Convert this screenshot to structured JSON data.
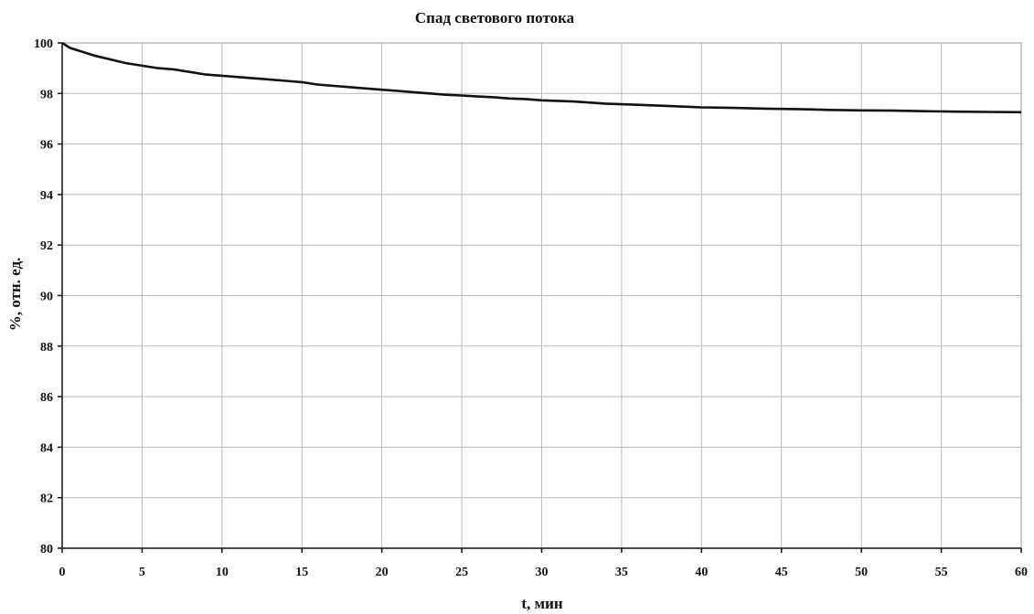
{
  "chart_data": {
    "type": "line",
    "title": "Спад светового потока",
    "xlabel": "t, мин",
    "ylabel": "%, отн. ед.",
    "xlim": [
      0,
      60
    ],
    "ylim": [
      80,
      100
    ],
    "x_ticks": [
      0,
      5,
      10,
      15,
      20,
      25,
      30,
      35,
      40,
      45,
      50,
      55,
      60
    ],
    "y_ticks": [
      80,
      82,
      84,
      86,
      88,
      90,
      92,
      94,
      96,
      98,
      100
    ],
    "x_tick_labels": [
      "0",
      "5",
      "10",
      "15",
      "20",
      "25",
      "30",
      "35",
      "40",
      "45",
      "50",
      "55",
      "60"
    ],
    "y_tick_labels": [
      "80",
      "82",
      "84",
      "86",
      "88",
      "90",
      "92",
      "94",
      "96",
      "98",
      "100"
    ],
    "grid": true,
    "legend": "none",
    "series": [
      {
        "color": "#111111",
        "x": [
          0,
          0.5,
          1,
          2,
          3,
          4,
          5,
          6,
          7,
          8,
          9,
          10,
          11,
          12,
          13,
          14,
          15,
          16,
          17,
          18,
          19,
          20,
          21,
          22,
          23,
          24,
          25,
          26,
          27,
          28,
          29,
          30,
          32,
          34,
          36,
          38,
          40,
          42,
          44,
          46,
          48,
          50,
          52,
          54,
          56,
          58,
          60
        ],
        "y": [
          100,
          99.8,
          99.7,
          99.5,
          99.35,
          99.2,
          99.1,
          99.0,
          98.95,
          98.85,
          98.75,
          98.7,
          98.65,
          98.6,
          98.55,
          98.5,
          98.45,
          98.35,
          98.3,
          98.25,
          98.2,
          98.15,
          98.1,
          98.05,
          98.0,
          97.95,
          97.92,
          97.88,
          97.85,
          97.8,
          97.78,
          97.73,
          97.68,
          97.6,
          97.55,
          97.5,
          97.45,
          97.43,
          97.4,
          97.38,
          97.35,
          97.33,
          97.32,
          97.3,
          97.28,
          97.27,
          97.26
        ]
      }
    ]
  }
}
